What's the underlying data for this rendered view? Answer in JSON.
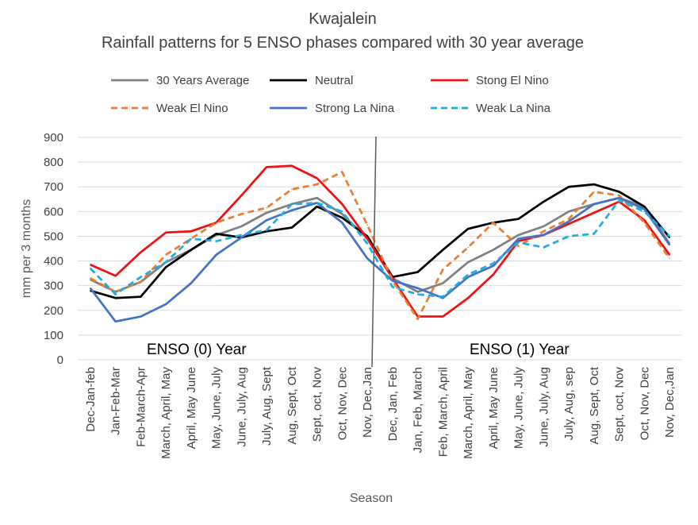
{
  "chart_data": {
    "type": "line",
    "title": "Kwajalein",
    "subtitle": "Rainfall patterns for 5 ENSO phases compared with 30 year average",
    "xlabel": "Season",
    "ylabel": "mm per 3 months",
    "ylim": [
      0,
      900
    ],
    "yticks": [
      0,
      100,
      200,
      300,
      400,
      500,
      600,
      700,
      800,
      900
    ],
    "grid": true,
    "legend_position": "top",
    "categories": [
      "Dec-Jan-feb",
      "Jan-Feb-Mar",
      "Feb-March-Apr",
      "March, April, May",
      "April, May June",
      "May, June, July",
      "June, July, Aug",
      "July, Aug, Sept",
      "Aug, Sept, Oct",
      "Sept, oct, Nov",
      "Oct, Nov, Dec",
      "Nov, Dec,Jan",
      "Dec, Jan, Feb",
      "Jan, Feb, March",
      "Feb, March, April",
      "March, April, May",
      "April, May June",
      "May, June, July",
      "June, July, Aug",
      "July, Aug, sep",
      "Aug, Sept, Oct",
      "Sept, oct, Nov",
      "Oct, Nov, Dec",
      "Nov, Dec,Jan"
    ],
    "series": [
      {
        "name": "30 Years Average",
        "color": "#808080",
        "dash": "solid",
        "values": [
          325,
          275,
          315,
          395,
          445,
          505,
          540,
          595,
          630,
          655,
          590,
          490,
          330,
          275,
          310,
          395,
          445,
          505,
          540,
          600,
          630,
          655,
          620,
          470
        ]
      },
      {
        "name": "Neutral",
        "color": "#000000",
        "dash": "solid",
        "values": [
          280,
          250,
          255,
          375,
          445,
          510,
          495,
          520,
          535,
          620,
          575,
          500,
          335,
          355,
          445,
          530,
          555,
          570,
          640,
          700,
          710,
          680,
          620,
          495
        ]
      },
      {
        "name": "Stong El Nino",
        "color": "#ee1111",
        "dash": "solid",
        "values": [
          385,
          340,
          435,
          515,
          520,
          555,
          665,
          780,
          785,
          735,
          630,
          490,
          330,
          175,
          175,
          250,
          345,
          480,
          505,
          550,
          595,
          640,
          565,
          425
        ]
      },
      {
        "name": "Weak El Nino",
        "color": "#ed7d31",
        "dash": "dashed",
        "values": [
          330,
          275,
          315,
          425,
          490,
          555,
          590,
          615,
          690,
          710,
          760,
          545,
          320,
          165,
          365,
          455,
          555,
          460,
          520,
          570,
          680,
          665,
          555,
          410
        ]
      },
      {
        "name": "Strong La Nina",
        "color": "#4472c4",
        "dash": "solid",
        "values": [
          290,
          155,
          175,
          225,
          310,
          425,
          495,
          565,
          605,
          635,
          555,
          410,
          320,
          290,
          250,
          335,
          380,
          490,
          505,
          560,
          630,
          655,
          610,
          465
        ]
      },
      {
        "name": "Weak La Nina",
        "color": "#1eaee6",
        "dash": "dashed",
        "values": [
          370,
          265,
          335,
          395,
          490,
          480,
          505,
          525,
          630,
          635,
          600,
          470,
          295,
          265,
          255,
          345,
          390,
          475,
          455,
          500,
          510,
          645,
          600,
          500
        ]
      }
    ],
    "annotations": [
      "ENSO (0) Year",
      "ENSO (1) Year"
    ]
  }
}
